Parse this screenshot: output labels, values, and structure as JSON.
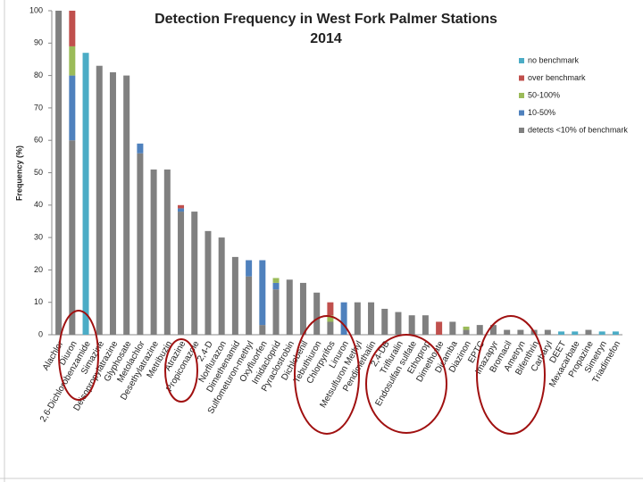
{
  "chart_data": {
    "type": "stacked-bar",
    "title": "Detection Frequency in West Fork Palmer Stations",
    "subtitle": "2014",
    "y_label": "Frequency (%)",
    "categories": [
      "Alachlor",
      "Diuron",
      "2,6-Dichlorobenzamide",
      "Simazine",
      "Deisopropylatrazine",
      "Glyphosate",
      "Metolachlor",
      "Desethylatrazine",
      "Metribuzin",
      "Atrazine",
      "Propiconazole",
      "2,4-D",
      "Norflurazon",
      "Dimethenamid",
      "Sulfometuron-methyl",
      "Oxyfluorfen",
      "Imidacloprid",
      "Pyraclostrobin",
      "Dichlobenil",
      "Tebuthiuron",
      "Chlorpyrifos",
      "Linuron",
      "Metsulfuron Methyl",
      "Pendimethalin",
      "2,4-DB",
      "Trifluralin",
      "Endosulfan sulfate",
      "Ethoprop",
      "Dimethoate",
      "Dicamba",
      "Diazinon",
      "EPTC",
      "Imazapyr",
      "Bromacil",
      "Ametryn",
      "Bifenthrin",
      "Carbaryl",
      "DEET",
      "Mexacarbate",
      "Propazine",
      "Simetryn",
      "Triadimefon"
    ],
    "series": [
      {
        "name": "detects <10% of benchmark",
        "color": "#808080",
        "values": [
          100,
          60,
          0,
          83,
          81,
          80,
          56,
          51,
          51,
          38,
          38,
          32,
          30,
          24,
          18,
          3,
          14,
          17,
          16,
          13,
          4,
          0,
          10,
          10,
          8,
          7,
          6,
          6,
          0,
          4,
          1.5,
          3,
          3,
          1.5,
          1.5,
          1.5,
          1.5,
          0,
          0,
          1.5,
          0,
          0
        ]
      },
      {
        "name": "10-50%",
        "color": "#4f81bd",
        "values": [
          0,
          20,
          0,
          0,
          0,
          0,
          3,
          0,
          0,
          1,
          0,
          0,
          0,
          0,
          5,
          20,
          2,
          0,
          0,
          0,
          0,
          10,
          0,
          0,
          0,
          0,
          0,
          0,
          0,
          0,
          0,
          0,
          0,
          0,
          0,
          0,
          0,
          0,
          0,
          0,
          0,
          0
        ]
      },
      {
        "name": "50-100%",
        "color": "#9bbb59",
        "values": [
          0,
          9,
          0,
          0,
          0,
          0,
          0,
          0,
          0,
          0,
          0,
          0,
          0,
          0,
          0,
          0,
          1.5,
          0,
          0,
          0,
          2,
          0,
          0,
          0,
          0,
          0,
          0,
          0,
          0,
          0,
          1,
          0,
          0,
          0,
          0,
          0,
          0,
          0,
          0,
          0,
          0,
          0
        ]
      },
      {
        "name": "over benchmark",
        "color": "#c0504d",
        "values": [
          0,
          11,
          0,
          0,
          0,
          0,
          0,
          0,
          0,
          1,
          0,
          0,
          0,
          0,
          0,
          0,
          0,
          0,
          0,
          0,
          4,
          0,
          0,
          0,
          0,
          0,
          0,
          0,
          4,
          0,
          0,
          0,
          0,
          0,
          0,
          0,
          0,
          0,
          0,
          0,
          0,
          0
        ]
      },
      {
        "name": "no benchmark",
        "color": "#4bacc6",
        "values": [
          0,
          0,
          87,
          0,
          0,
          0,
          0,
          0,
          0,
          0,
          0,
          0,
          0,
          0,
          0,
          0,
          0,
          0,
          0,
          0,
          0,
          0,
          0,
          0,
          0,
          0,
          0,
          0,
          0,
          0,
          0,
          0,
          0,
          0,
          0,
          0,
          0,
          1,
          1,
          0,
          1,
          1
        ]
      }
    ],
    "ylim": [
      0,
      100
    ],
    "yticks": [
      0,
      10,
      20,
      30,
      40,
      50,
      60,
      70,
      80,
      90,
      100
    ]
  }
}
